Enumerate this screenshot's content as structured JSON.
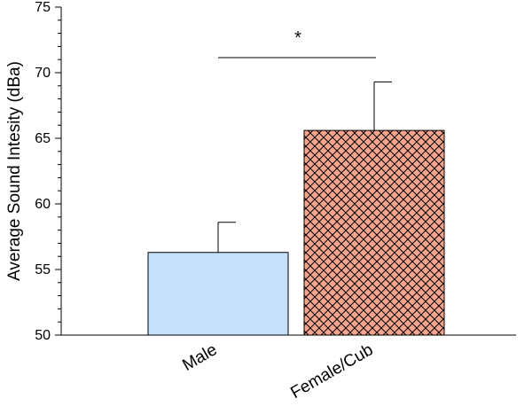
{
  "chart_data": {
    "type": "bar",
    "categories": [
      "Male",
      "Female/Cub"
    ],
    "values": [
      56.3,
      65.6
    ],
    "error_upper": [
      58.6,
      69.3
    ],
    "ylabel": "Average Sound Intesity (dBa)",
    "xlabel": "",
    "ylim": [
      50,
      75
    ],
    "yticks": [
      50,
      55,
      60,
      65,
      70,
      75
    ],
    "yminor_step": 1,
    "grid": false,
    "legend": "none",
    "bar_colors": [
      "#c6e0fa",
      "#f7a58c"
    ],
    "bar_patterns": [
      "solid",
      "crosshatch"
    ],
    "significance": {
      "label": "*",
      "between": [
        "Male",
        "Female/Cub"
      ]
    }
  }
}
